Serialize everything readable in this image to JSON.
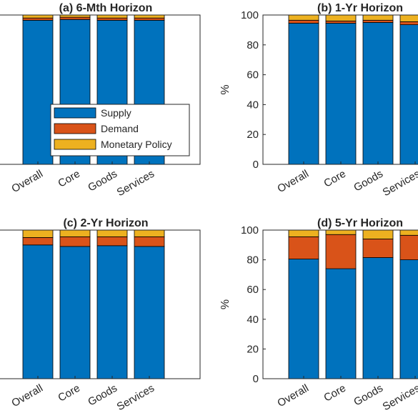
{
  "series_colors": [
    "#0072BD",
    "#D95319",
    "#EDB120"
  ],
  "chart_data": [
    {
      "type": "bar",
      "stacked": true,
      "title": "(a) 6-Mth Horizon",
      "categories": [
        "Overall",
        "Core",
        "Goods",
        "Services"
      ],
      "ylim": [
        0,
        100
      ],
      "yticks": [],
      "ylabel": "",
      "legend": {
        "placement": "bottom-right",
        "entries": [
          "Supply",
          "Demand",
          "Monetary Policy"
        ]
      },
      "series": [
        {
          "name": "Supply",
          "values": [
            96.5,
            97.0,
            96.5,
            96.5
          ]
        },
        {
          "name": "Demand",
          "values": [
            1.5,
            1.5,
            1.5,
            1.5
          ]
        },
        {
          "name": "Monetary Policy",
          "values": [
            2.0,
            1.5,
            2.0,
            2.0
          ]
        }
      ]
    },
    {
      "type": "bar",
      "stacked": true,
      "title": "(b) 1-Yr Horizon",
      "categories": [
        "Overall",
        "Core",
        "Goods",
        "Services"
      ],
      "ylim": [
        0,
        100
      ],
      "yticks": [
        "0",
        "20",
        "40",
        "60",
        "80",
        "100"
      ],
      "ylabel": "%",
      "series": [
        {
          "name": "Supply",
          "values": [
            94.5,
            94.5,
            95.0,
            93.5
          ]
        },
        {
          "name": "Demand",
          "values": [
            2.0,
            1.5,
            1.5,
            2.0
          ]
        },
        {
          "name": "Monetary Policy",
          "values": [
            3.5,
            4.0,
            3.5,
            4.5
          ]
        }
      ]
    },
    {
      "type": "bar",
      "stacked": true,
      "title": "(c) 2-Yr Horizon",
      "categories": [
        "Overall",
        "Core",
        "Goods",
        "Services"
      ],
      "ylim": [
        0,
        100
      ],
      "yticks": [],
      "ylabel": "",
      "series": [
        {
          "name": "Supply",
          "values": [
            90.0,
            89.0,
            89.5,
            89.0
          ]
        },
        {
          "name": "Demand",
          "values": [
            5.0,
            6.5,
            6.0,
            6.5
          ]
        },
        {
          "name": "Monetary Policy",
          "values": [
            5.0,
            4.5,
            4.5,
            4.5
          ]
        }
      ]
    },
    {
      "type": "bar",
      "stacked": true,
      "title": "(d) 5-Yr Horizon",
      "categories": [
        "Overall",
        "Core",
        "Goods",
        "Services"
      ],
      "ylim": [
        0,
        100
      ],
      "yticks": [
        "0",
        "20",
        "40",
        "60",
        "80",
        "100"
      ],
      "ylabel": "%",
      "series": [
        {
          "name": "Supply",
          "values": [
            80.5,
            74.0,
            81.5,
            80.0
          ]
        },
        {
          "name": "Demand",
          "values": [
            15.0,
            23.0,
            12.5,
            16.5
          ]
        },
        {
          "name": "Monetary Policy",
          "values": [
            4.5,
            3.0,
            6.0,
            3.5
          ]
        }
      ]
    }
  ]
}
